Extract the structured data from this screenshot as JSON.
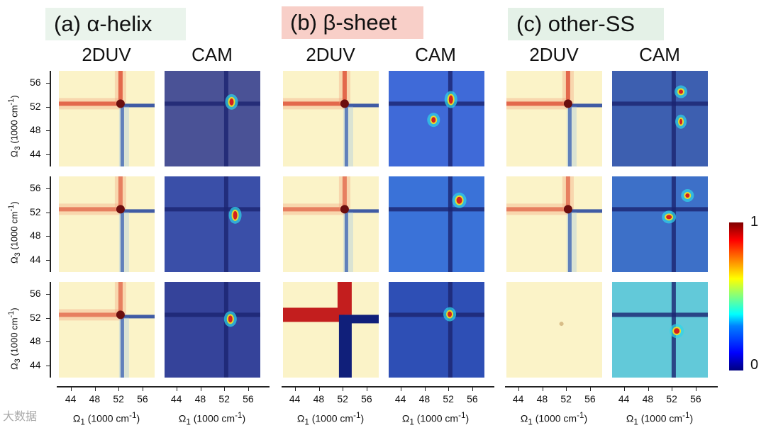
{
  "groups": [
    {
      "label": "(a) α-helix",
      "bg": "#eaf4ec"
    },
    {
      "label": "(b) β-sheet",
      "bg": "#f8cfc8"
    },
    {
      "label": "(c) other-SS",
      "bg": "#e4f1e7"
    }
  ],
  "subtitles": {
    "duv": "2DUV",
    "cam": "CAM"
  },
  "y_axis_label": "Ω3 (1000 cm-1)",
  "x_axis_label": "Ω1 (1000 cm-1)",
  "watermark": "大数据",
  "chart_data": {
    "type": "heatmap",
    "x_ticks": [
      "44",
      "48",
      "52",
      "56"
    ],
    "y_ticks": [
      "56",
      "52",
      "48",
      "44"
    ],
    "x_range": [
      42,
      58
    ],
    "y_range": [
      42,
      58
    ],
    "colorbar": {
      "min": "0",
      "max": "1",
      "colormap": "jet"
    },
    "panels_description": "3 rows x 6 columns: for each group (α-helix, β-sheet, other-SS) a 2DUV spectrum and its CAM heat map"
  }
}
